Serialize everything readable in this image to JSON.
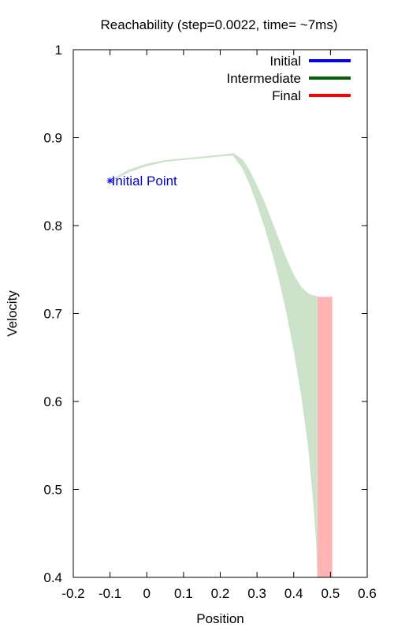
{
  "chart_data": {
    "type": "area",
    "title": "Reachability (step=0.0022, time= ~7ms)",
    "xlabel": "Position",
    "ylabel": "Velocity",
    "xlim": [
      -0.2,
      0.6
    ],
    "ylim": [
      0.4,
      1.0
    ],
    "xticks": [
      "-0.2",
      "-0.1",
      "0",
      "0.1",
      "0.2",
      "0.3",
      "0.4",
      "0.5",
      "0.6"
    ],
    "yticks": [
      "0.4",
      "0.5",
      "0.6",
      "0.7",
      "0.8",
      "0.9",
      "1"
    ],
    "grid": false,
    "legend_position": "top-right",
    "series": [
      {
        "name": "Initial",
        "color": "#0000ff",
        "points": [
          [
            -0.1,
            0.851
          ]
        ]
      },
      {
        "name": "Intermediate",
        "color": "#006400",
        "fill": "#cde2cb",
        "upper": [
          [
            -0.1,
            0.851
          ],
          [
            -0.05,
            0.863
          ],
          [
            0.0,
            0.87
          ],
          [
            0.05,
            0.874
          ],
          [
            0.1,
            0.876
          ],
          [
            0.15,
            0.878
          ],
          [
            0.2,
            0.88
          ],
          [
            0.235,
            0.882
          ],
          [
            0.26,
            0.875
          ],
          [
            0.28,
            0.862
          ],
          [
            0.3,
            0.845
          ],
          [
            0.32,
            0.826
          ],
          [
            0.34,
            0.805
          ],
          [
            0.36,
            0.783
          ],
          [
            0.38,
            0.762
          ],
          [
            0.4,
            0.743
          ],
          [
            0.42,
            0.73
          ],
          [
            0.44,
            0.722
          ],
          [
            0.465,
            0.719
          ]
        ],
        "lower": [
          [
            -0.1,
            0.85
          ],
          [
            -0.05,
            0.861
          ],
          [
            0.0,
            0.868
          ],
          [
            0.05,
            0.873
          ],
          [
            0.1,
            0.875
          ],
          [
            0.15,
            0.877
          ],
          [
            0.2,
            0.879
          ],
          [
            0.235,
            0.88
          ],
          [
            0.26,
            0.866
          ],
          [
            0.28,
            0.848
          ],
          [
            0.3,
            0.825
          ],
          [
            0.32,
            0.8
          ],
          [
            0.34,
            0.772
          ],
          [
            0.36,
            0.74
          ],
          [
            0.38,
            0.703
          ],
          [
            0.4,
            0.66
          ],
          [
            0.42,
            0.61
          ],
          [
            0.44,
            0.55
          ],
          [
            0.455,
            0.48
          ],
          [
            0.462,
            0.44
          ],
          [
            0.465,
            0.4
          ]
        ]
      },
      {
        "name": "Final",
        "color": "#ff0000",
        "fill": "#ffb3b3",
        "rect": {
          "x": [
            0.465,
            0.505
          ],
          "y": [
            0.4,
            0.719
          ]
        }
      }
    ],
    "annotations": [
      {
        "text": "Initial Point",
        "x": -0.1,
        "y": 0.851,
        "color": "#0000cc"
      }
    ]
  }
}
